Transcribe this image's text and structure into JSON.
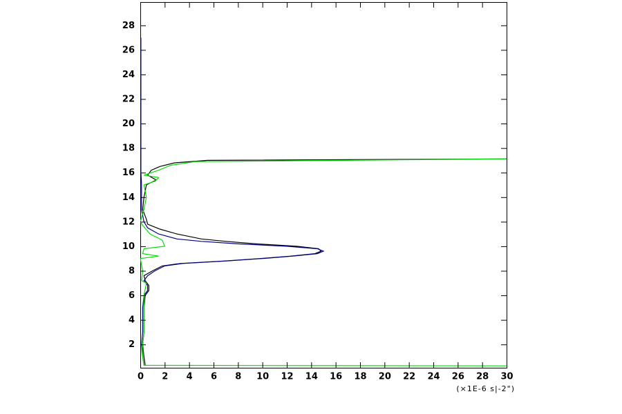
{
  "chart_data": {
    "type": "line",
    "orientation": "vertical",
    "xlim": [
      0,
      30
    ],
    "xticks": [
      0,
      2,
      4,
      6,
      8,
      10,
      12,
      14,
      16,
      18,
      20,
      22,
      24,
      26,
      28,
      30
    ],
    "ylim": [
      0.1,
      29.9
    ],
    "yticks": [
      2,
      4,
      6,
      8,
      10,
      12,
      14,
      16,
      18,
      20,
      22,
      24,
      26,
      28
    ],
    "x_unit": "(×1E-6 s|-2\")",
    "series": [
      {
        "color": "#000000",
        "y": [
          0.3,
          1,
          2,
          3,
          4,
          5,
          6,
          6.4,
          6.8,
          7.2,
          7.6,
          8,
          8.4,
          8.6,
          8.8,
          9,
          9.2,
          9.4,
          9.6,
          9.8,
          10,
          10.2,
          10.4,
          10.6,
          11,
          11.4,
          11.8,
          12.2,
          13,
          14,
          15,
          15.4,
          15.8,
          16.2,
          16.5,
          16.8,
          17,
          17.12
        ],
        "values": [
          0.4,
          0.3,
          0.2,
          0.3,
          0.3,
          0.3,
          0.4,
          0.7,
          0.7,
          0.4,
          0.3,
          1.0,
          1.8,
          3.3,
          6.8,
          9.8,
          12.3,
          14.3,
          14.8,
          14.6,
          12.8,
          9.5,
          7.0,
          5.0,
          3.0,
          1.6,
          0.6,
          0.5,
          0.2,
          0.3,
          0.5,
          1.3,
          0.6,
          0.9,
          1.6,
          2.8,
          5.5,
          30
        ]
      },
      {
        "color": "#00008b",
        "y": [
          0.3,
          1,
          2,
          3,
          4,
          5,
          6,
          6.4,
          6.8,
          7.2,
          7.6,
          8,
          8.4,
          8.6,
          8.8,
          9,
          9.2,
          9.4,
          9.6,
          9.8,
          10,
          10.2,
          10.4,
          10.6,
          11,
          11.5,
          12,
          13,
          14,
          15,
          16,
          17,
          18,
          20,
          22,
          24,
          26,
          27
        ],
        "values": [
          0.3,
          0.2,
          0.1,
          0.2,
          0.2,
          0.2,
          0.3,
          0.6,
          0.6,
          0.3,
          0.6,
          1.2,
          2.0,
          3.5,
          7.0,
          10.0,
          12.5,
          14.5,
          15.0,
          14.5,
          12.0,
          8.0,
          5.0,
          3.0,
          1.5,
          0.6,
          0.3,
          0.1,
          0.1,
          0.1,
          0.05,
          0.05,
          0.05,
          0.05,
          0.05,
          0.05,
          0.05,
          0.05
        ]
      },
      {
        "color": "#00e000",
        "y": [
          0.26,
          0.3,
          1,
          2,
          3,
          4,
          5,
          6,
          7,
          7.2,
          8,
          9,
          9.2,
          9.4,
          9.8,
          10,
          10.5,
          11,
          11.7,
          12,
          13,
          14,
          15,
          15.3,
          15.6,
          15.8,
          16.2,
          16.6,
          16.9,
          17.12
        ],
        "values": [
          30,
          0.3,
          0.2,
          0.2,
          0.3,
          0.3,
          0.3,
          0.3,
          0.5,
          0.1,
          0.2,
          0,
          1.5,
          0.2,
          0.3,
          2.0,
          1.8,
          0.8,
          0.2,
          0,
          0.3,
          0.5,
          0.3,
          1.2,
          1.5,
          0.3,
          1.5,
          2.5,
          4.5,
          30
        ]
      }
    ]
  }
}
